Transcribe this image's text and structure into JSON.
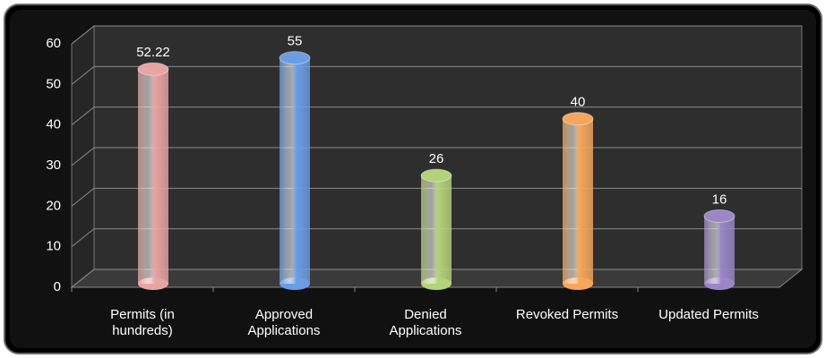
{
  "chart_data": {
    "type": "bar",
    "categories": [
      "Permits (in hundreds)",
      "Approved Applications",
      "Denied Applications",
      "Revoked Permits",
      "Updated Permits"
    ],
    "values": [
      52.22,
      55,
      26,
      40,
      16
    ],
    "colors": [
      "#e8a3a3",
      "#6c9de3",
      "#b4d27a",
      "#f6a75c",
      "#9b86c6"
    ],
    "ylim": [
      0,
      60
    ],
    "yticks": [
      0,
      10,
      20,
      30,
      40,
      50,
      60
    ],
    "grid": true
  }
}
